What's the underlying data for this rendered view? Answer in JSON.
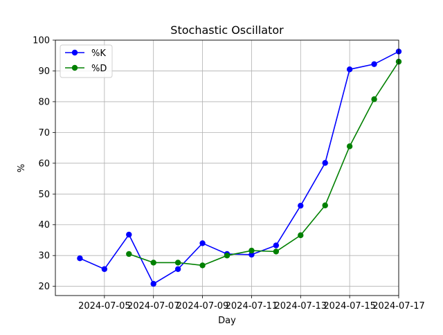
{
  "chart_data": {
    "type": "line",
    "title": "Stochastic Oscillator",
    "xlabel": "Day",
    "ylabel": "%",
    "ylim": [
      17,
      100
    ],
    "yticks": [
      20,
      30,
      40,
      50,
      60,
      70,
      80,
      90,
      100
    ],
    "xlim": [
      "2024-07-03",
      "2024-07-17"
    ],
    "xtick_labels": [
      "2024-07-05",
      "2024-07-07",
      "2024-07-09",
      "2024-07-11",
      "2024-07-13",
      "2024-07-15",
      "2024-07-17"
    ],
    "grid": true,
    "legend_position": "top-left",
    "x": [
      "2024-07-04",
      "2024-07-05",
      "2024-07-06",
      "2024-07-07",
      "2024-07-08",
      "2024-07-09",
      "2024-07-10",
      "2024-07-11",
      "2024-07-12",
      "2024-07-13",
      "2024-07-14",
      "2024-07-15",
      "2024-07-16",
      "2024-07-17"
    ],
    "series": [
      {
        "name": "%K",
        "color": "#0000ff",
        "values": [
          29.1,
          25.6,
          36.8,
          20.8,
          25.6,
          34.0,
          30.5,
          30.3,
          33.3,
          46.2,
          60.1,
          90.5,
          92.2,
          96.3
        ]
      },
      {
        "name": "%D",
        "color": "#008000",
        "values": [
          null,
          null,
          30.5,
          27.7,
          27.7,
          26.8,
          30.0,
          31.6,
          31.3,
          36.6,
          46.3,
          65.5,
          80.8,
          93.0
        ]
      }
    ]
  }
}
